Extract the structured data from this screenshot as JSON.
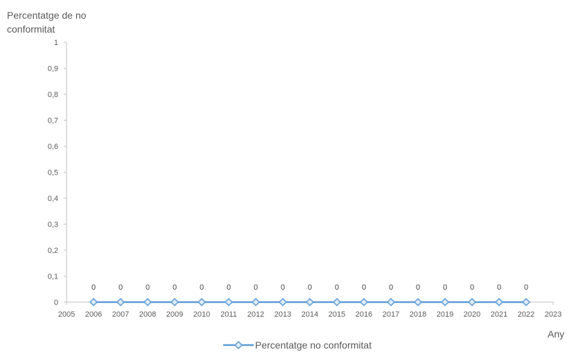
{
  "chart_data": {
    "type": "line",
    "title": "",
    "ylabel": "Percentatge de no conformitat",
    "xlabel": "Any",
    "xlim": [
      2005,
      2023
    ],
    "ylim": [
      0,
      1
    ],
    "x_ticks": [
      "2005",
      "2006",
      "2007",
      "2008",
      "2009",
      "2010",
      "2011",
      "2012",
      "2013",
      "2014",
      "2015",
      "2016",
      "2017",
      "2018",
      "2019",
      "2020",
      "2021",
      "2022",
      "2023"
    ],
    "y_ticks": [
      "0",
      "0,1",
      "0,2",
      "0,3",
      "0,4",
      "0,5",
      "0,6",
      "0,7",
      "0,8",
      "0,9",
      "1"
    ],
    "legend_position": "bottom",
    "grid": false,
    "series": [
      {
        "name": "Percentatge no conformitat",
        "color": "#5B9BD5",
        "marker": "diamond",
        "x": [
          2006,
          2007,
          2008,
          2009,
          2010,
          2011,
          2012,
          2013,
          2014,
          2015,
          2016,
          2017,
          2018,
          2019,
          2020,
          2021,
          2022
        ],
        "y": [
          0,
          0,
          0,
          0,
          0,
          0,
          0,
          0,
          0,
          0,
          0,
          0,
          0,
          0,
          0,
          0,
          0
        ],
        "labels": [
          "0",
          "0",
          "0",
          "0",
          "0",
          "0",
          "0",
          "0",
          "0",
          "0",
          "0",
          "0",
          "0",
          "0",
          "0",
          "0",
          "0"
        ]
      }
    ]
  }
}
